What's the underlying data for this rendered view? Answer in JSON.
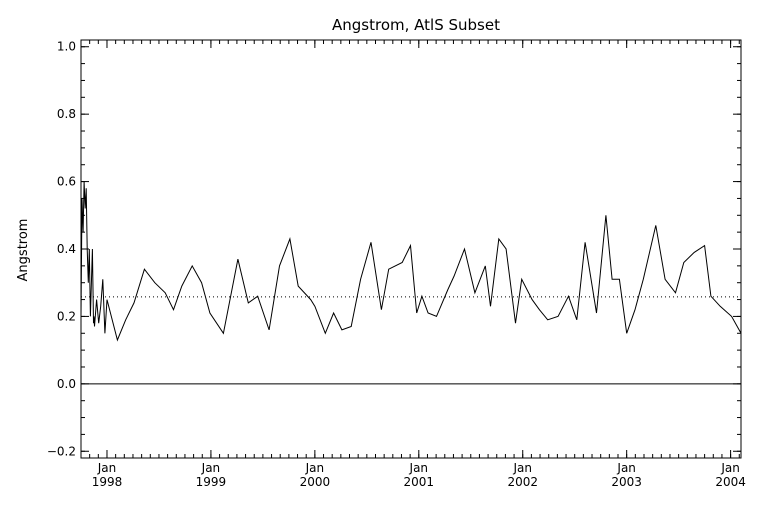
{
  "chart_data": {
    "type": "line",
    "title": "Angstrom, AtlS Subset",
    "xlabel": "",
    "ylabel": "Angstrom",
    "xlim": [
      1997.75,
      2004.1
    ],
    "ylim": [
      -0.22,
      1.02
    ],
    "y_ticks": [
      {
        "value": -0.2,
        "label": "−0.2"
      },
      {
        "value": 0.0,
        "label": "0.0"
      },
      {
        "value": 0.2,
        "label": "0.2"
      },
      {
        "value": 0.4,
        "label": "0.4"
      },
      {
        "value": 0.6,
        "label": "0.6"
      },
      {
        "value": 0.8,
        "label": "0.8"
      },
      {
        "value": 1.0,
        "label": "1.0"
      }
    ],
    "x_ticks": [
      {
        "value": 1998.0,
        "month": "Jan",
        "year": "1998"
      },
      {
        "value": 1999.0,
        "month": "Jan",
        "year": "1999"
      },
      {
        "value": 2000.0,
        "month": "Jan",
        "year": "2000"
      },
      {
        "value": 2001.0,
        "month": "Jan",
        "year": "2001"
      },
      {
        "value": 2002.0,
        "month": "Jan",
        "year": "2002"
      },
      {
        "value": 2003.0,
        "month": "Jan",
        "year": "2003"
      },
      {
        "value": 2004.0,
        "month": "Jan",
        "year": "2004"
      }
    ],
    "reference_lines": [
      {
        "y": 0.258,
        "style": "dotted"
      },
      {
        "y": 0.0,
        "style": "solid"
      }
    ],
    "grid": false,
    "series": [
      {
        "x": [
          1997.75,
          1997.76,
          1997.77,
          1997.78,
          1997.79,
          1997.8,
          1997.81,
          1997.82,
          1997.83,
          1997.84,
          1997.86,
          1997.87,
          1997.875,
          1997.88,
          1997.9,
          1997.92,
          1997.94,
          1997.96,
          1997.98,
          1998.0,
          1998.1,
          1998.18,
          1998.26,
          1998.36,
          1998.46,
          1998.56,
          1998.64,
          1998.72,
          1998.82,
          1998.91,
          1998.99,
          1999.12,
          1999.26,
          1999.36,
          1999.45,
          1999.56,
          1999.66,
          1999.76,
          1999.84,
          1999.96,
          2000.0,
          2000.1,
          2000.18,
          2000.26,
          2000.35,
          2000.44,
          2000.54,
          2000.64,
          2000.71,
          2000.84,
          2000.92,
          2000.98,
          2001.03,
          2001.09,
          2001.17,
          2001.28,
          2001.34,
          2001.44,
          2001.54,
          2001.64,
          2001.69,
          2001.77,
          2001.84,
          2001.93,
          2001.99,
          2002.09,
          2002.16,
          2002.24,
          2002.34,
          2002.44,
          2002.52,
          2002.6,
          2002.71,
          2002.8,
          2002.86,
          2002.93,
          2003.0,
          2003.08,
          2003.16,
          2003.28,
          2003.37,
          2003.47,
          2003.55,
          2003.65,
          2003.75,
          2003.81,
          2003.9,
          2004.01,
          2004.1
        ],
        "y": [
          0.2,
          0.55,
          0.45,
          0.6,
          0.52,
          0.58,
          0.4,
          0.3,
          0.4,
          0.2,
          0.4,
          0.18,
          0.2,
          0.17,
          0.25,
          0.18,
          0.23,
          0.31,
          0.15,
          0.25,
          0.13,
          0.19,
          0.24,
          0.34,
          0.3,
          0.27,
          0.22,
          0.29,
          0.35,
          0.3,
          0.21,
          0.15,
          0.37,
          0.24,
          0.26,
          0.16,
          0.35,
          0.43,
          0.29,
          0.25,
          0.23,
          0.15,
          0.21,
          0.16,
          0.17,
          0.31,
          0.42,
          0.22,
          0.34,
          0.36,
          0.41,
          0.21,
          0.26,
          0.21,
          0.2,
          0.28,
          0.32,
          0.4,
          0.27,
          0.35,
          0.23,
          0.43,
          0.4,
          0.18,
          0.31,
          0.25,
          0.22,
          0.19,
          0.2,
          0.26,
          0.19,
          0.42,
          0.21,
          0.5,
          0.31,
          0.31,
          0.15,
          0.22,
          0.31,
          0.47,
          0.31,
          0.27,
          0.36,
          0.39,
          0.41,
          0.26,
          0.23,
          0.2,
          0.15
        ]
      }
    ]
  }
}
